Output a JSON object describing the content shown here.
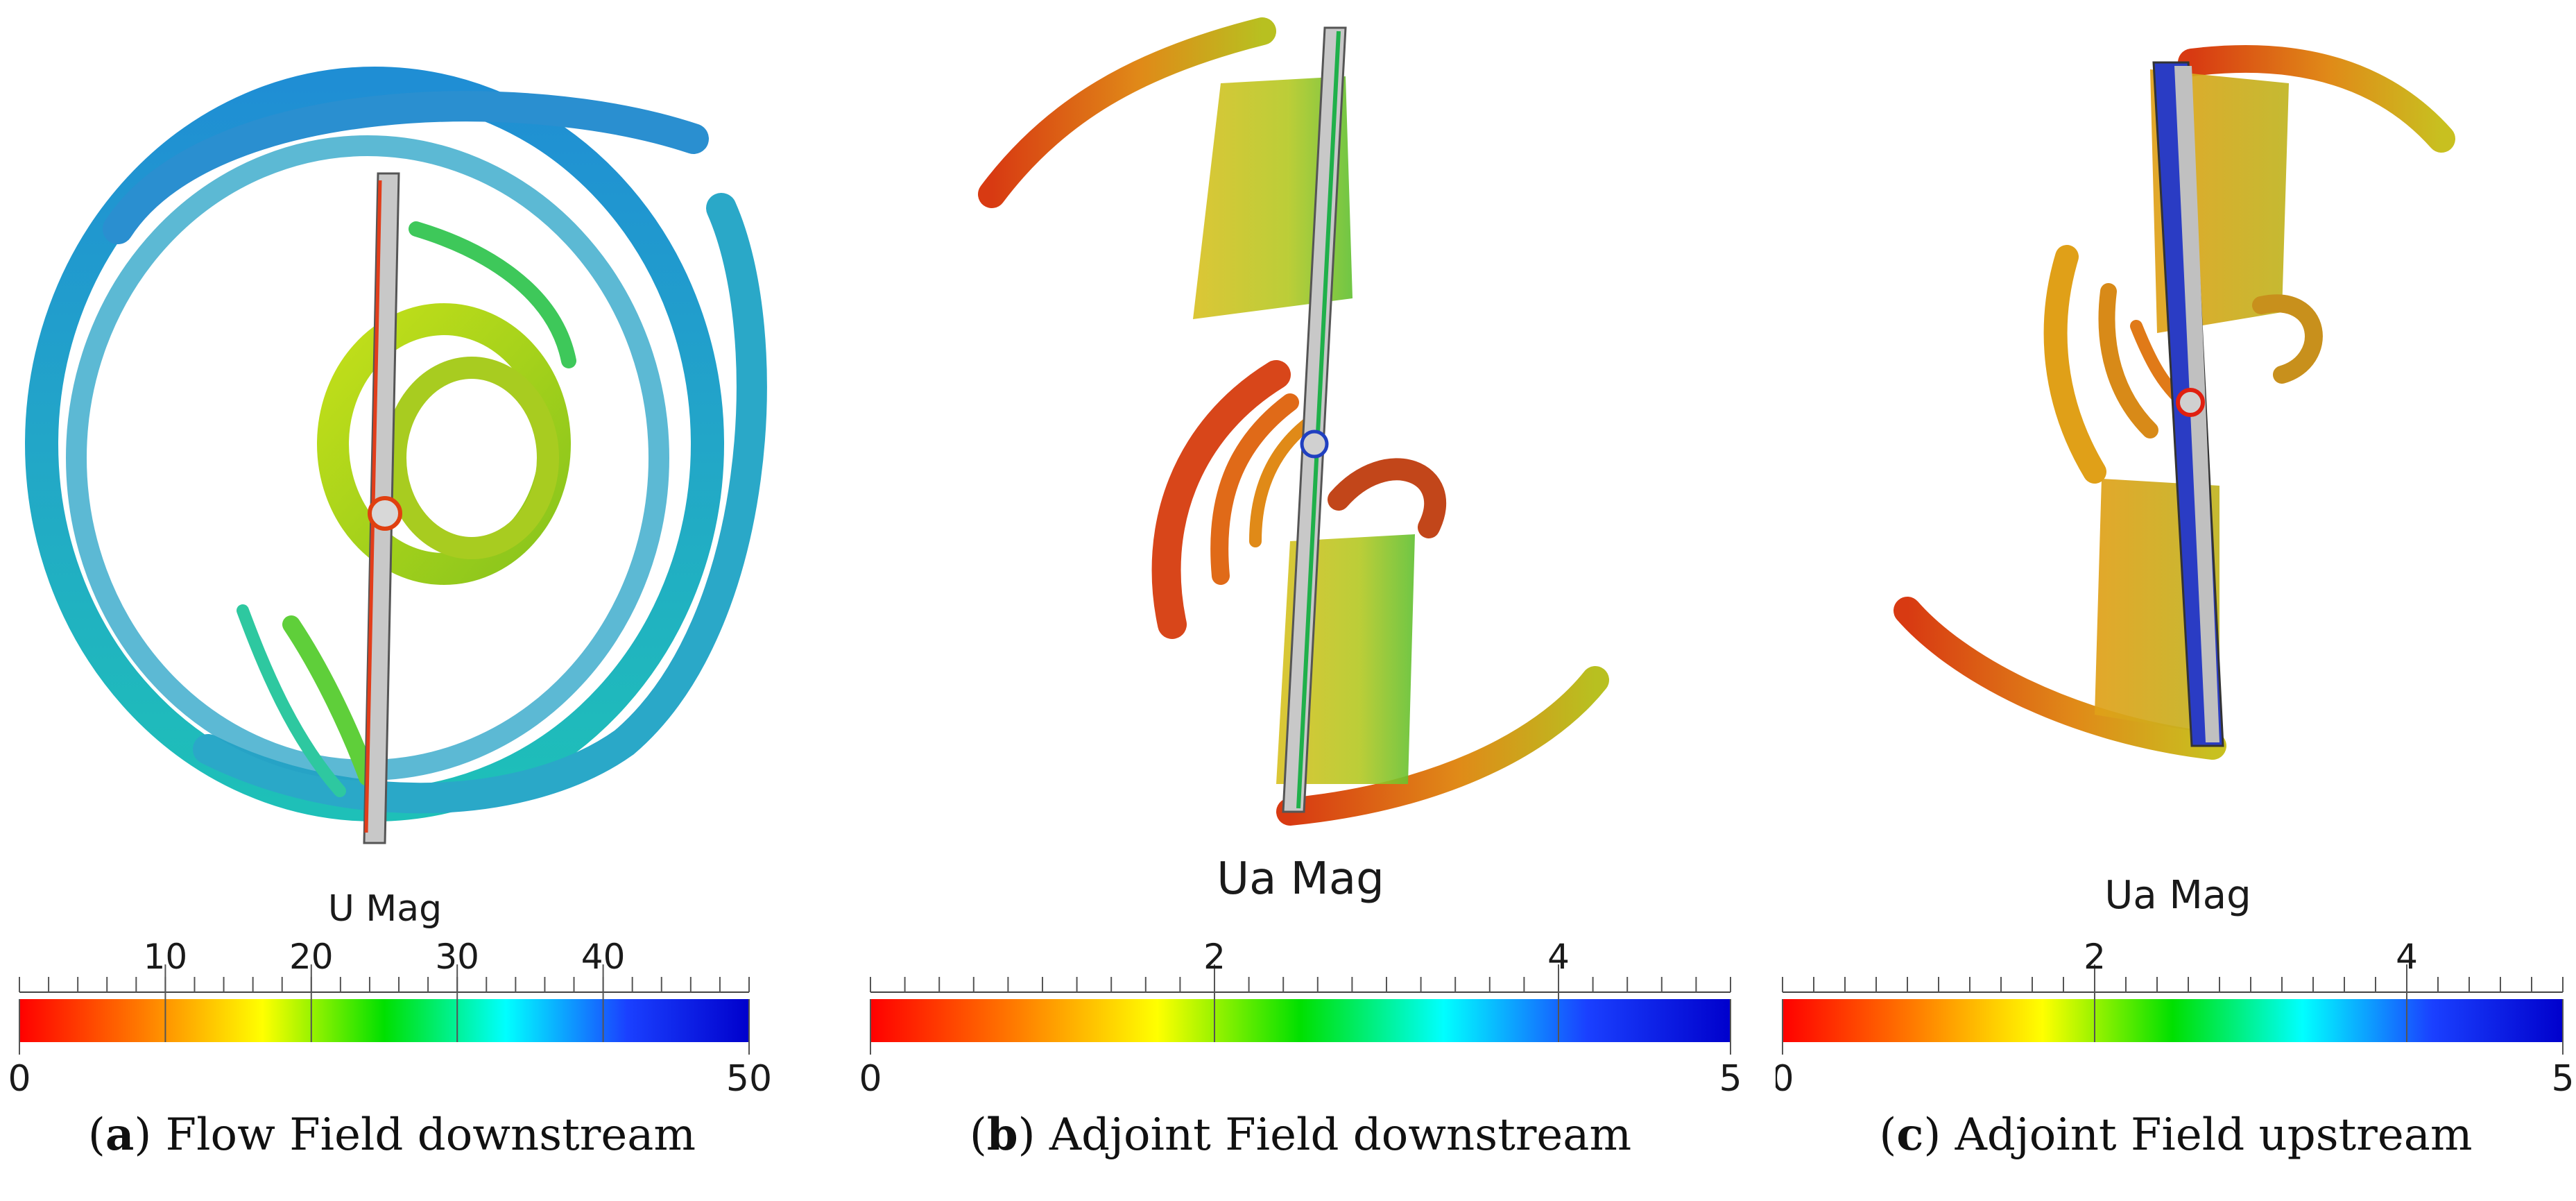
{
  "panels": [
    {
      "letter": "a",
      "caption": "Flow Field downstream",
      "colorbar": {
        "title": "U Mag",
        "min_label": "0",
        "max_label": "50",
        "range": [
          0,
          50
        ],
        "top_ticks": [
          {
            "value": 10,
            "label": "10"
          },
          {
            "value": 20,
            "label": "20"
          },
          {
            "value": 30,
            "label": "30"
          },
          {
            "value": 40,
            "label": "40"
          }
        ],
        "minor_step": 2
      }
    },
    {
      "letter": "b",
      "caption": "Adjoint Field downstream",
      "colorbar": {
        "title": "Ua Mag",
        "min_label": "0",
        "max_label": "5",
        "range": [
          0,
          5
        ],
        "top_ticks": [
          {
            "value": 2,
            "label": "2"
          },
          {
            "value": 4,
            "label": "4"
          }
        ],
        "minor_step": 0.2
      }
    },
    {
      "letter": "c",
      "caption": "Adjoint Field upstream",
      "colorbar": {
        "title": "Ua Mag",
        "min_label": "0",
        "max_label": "5",
        "range": [
          0,
          5
        ],
        "top_ticks": [
          {
            "value": 2,
            "label": "2"
          },
          {
            "value": 4,
            "label": "4"
          }
        ],
        "minor_step": 0.2
      }
    }
  ],
  "colormap": [
    "#ff0000",
    "#ff7a00",
    "#ffff00",
    "#00e000",
    "#00ffff",
    "#1a40ff",
    "#0000cc"
  ]
}
